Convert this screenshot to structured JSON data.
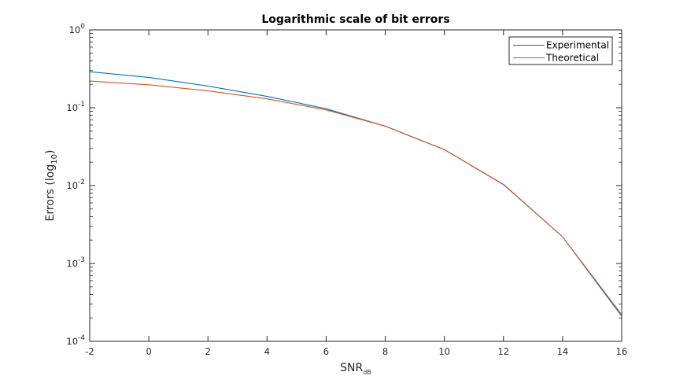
{
  "chart_data": {
    "type": "line",
    "title": "Logarithmic scale of bit errors",
    "xlabel": {
      "main": "SNR",
      "sub": "dB"
    },
    "ylabel": {
      "main": "Errors (log",
      "sub": "10",
      "end": ")"
    },
    "yscale": "log",
    "xlim": [
      -2,
      16
    ],
    "ylim": [
      0.0001,
      1
    ],
    "x_ticks": [
      -2,
      0,
      2,
      4,
      6,
      8,
      10,
      12,
      14,
      16
    ],
    "y_ticks": [
      {
        "base": "10",
        "exp": "0",
        "value": 1
      },
      {
        "base": "10",
        "exp": "-1",
        "value": 0.1
      },
      {
        "base": "10",
        "exp": "-2",
        "value": 0.01
      },
      {
        "base": "10",
        "exp": "-3",
        "value": 0.001
      },
      {
        "base": "10",
        "exp": "-4",
        "value": 0.0001
      }
    ],
    "grid": false,
    "legend_position": "top-right",
    "x": [
      -2,
      0,
      2,
      4,
      6,
      8,
      10,
      12,
      14,
      16
    ],
    "series": [
      {
        "name": "Experimental",
        "color": "#0072BD",
        "values": [
          0.29,
          0.245,
          0.19,
          0.14,
          0.097,
          0.058,
          0.029,
          0.0103,
          0.0022,
          0.00021
        ]
      },
      {
        "name": "Theoretical",
        "color": "#D95319",
        "values": [
          0.22,
          0.197,
          0.165,
          0.13,
          0.094,
          0.058,
          0.029,
          0.0104,
          0.0022,
          0.00022
        ]
      }
    ]
  }
}
